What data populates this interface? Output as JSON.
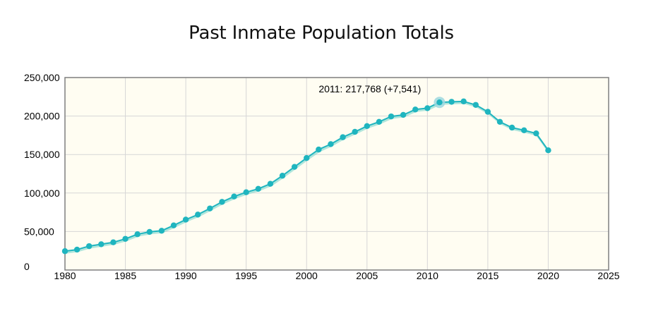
{
  "chart_data": {
    "type": "line",
    "title": "Past Inmate Population Totals",
    "xlabel": "",
    "ylabel": "",
    "xlim": [
      1980,
      2025
    ],
    "ylim": [
      0,
      250000
    ],
    "x_ticks": [
      {
        "value": 1980,
        "label": "1980"
      },
      {
        "value": 1985,
        "label": "1985"
      },
      {
        "value": 1990,
        "label": "1990"
      },
      {
        "value": 1995,
        "label": "1995"
      },
      {
        "value": 2000,
        "label": "2000"
      },
      {
        "value": 2005,
        "label": "2005"
      },
      {
        "value": 2010,
        "label": "2010"
      },
      {
        "value": 2015,
        "label": "2015"
      },
      {
        "value": 2020,
        "label": "2020"
      },
      {
        "value": 2025,
        "label": "2025"
      }
    ],
    "y_ticks": [
      {
        "value": 0,
        "label": "0"
      },
      {
        "value": 50000,
        "label": "50,000"
      },
      {
        "value": 100000,
        "label": "100,000"
      },
      {
        "value": 150000,
        "label": "150,000"
      },
      {
        "value": 200000,
        "label": "200,000"
      },
      {
        "value": 250000,
        "label": "250,000"
      }
    ],
    "grid": true,
    "legend": "none",
    "colors": {
      "line": "#1fb5bf",
      "shadow": "#8fdcd3",
      "plot_background": "#fffdf2",
      "grid": "#d6d6d6",
      "frame": "#7f7f7f",
      "highlight": "#9ed8df"
    },
    "series": [
      {
        "x": [
          1980,
          1981,
          1982,
          1983,
          1984,
          1985,
          1986,
          1987,
          1988,
          1989,
          1990,
          1991,
          1992,
          1993,
          1994,
          1995,
          1996,
          1997,
          1998,
          1999,
          2000,
          2001,
          2002,
          2003,
          2004,
          2005,
          2006,
          2007,
          2008,
          2009,
          2010,
          2011,
          2012,
          2013,
          2014,
          2015,
          2016,
          2017,
          2018,
          2019,
          2020
        ],
        "values": [
          24500,
          26500,
          31000,
          33500,
          36000,
          40500,
          46500,
          49500,
          51000,
          58000,
          65500,
          72000,
          80000,
          88500,
          95500,
          101000,
          105500,
          112000,
          122500,
          134000,
          145500,
          156500,
          163500,
          172500,
          179500,
          187000,
          192500,
          199500,
          201500,
          208500,
          210227,
          217768,
          218500,
          219000,
          214500,
          205500,
          192500,
          185000,
          181500,
          177500,
          155500
        ]
      }
    ],
    "highlight": {
      "x": 2011,
      "y": 217768
    },
    "tooltip": "2011: 217,768 (+7,541)"
  }
}
